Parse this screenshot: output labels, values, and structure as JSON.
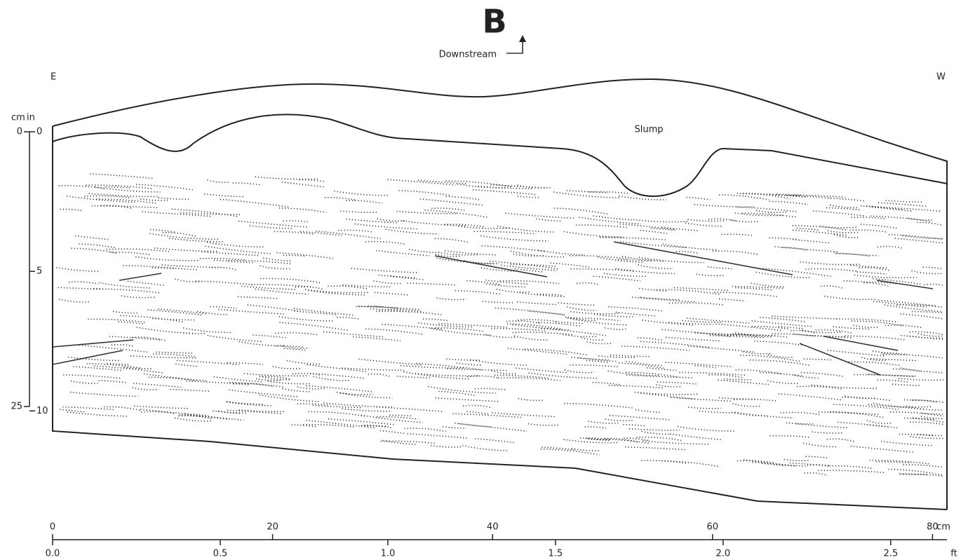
{
  "header": {
    "title": "B",
    "direction": "Downstream"
  },
  "orientation": {
    "left": "E",
    "right": "W"
  },
  "labels": {
    "slump": "Slump"
  },
  "vertical_scale": {
    "cm_unit": "cm",
    "in_unit": "in",
    "cm_ticks": [
      0,
      25
    ],
    "in_ticks": [
      0,
      5,
      10
    ]
  },
  "horizontal_scale": {
    "cm_unit": "cm",
    "ft_unit": "ft",
    "cm_ticks": [
      0,
      20,
      40,
      60,
      80
    ],
    "ft_ticks": [
      {
        "value": 0,
        "label": "0.0"
      },
      0.5,
      {
        "value": 1,
        "label": "1.0"
      },
      1.5,
      {
        "value": 2,
        "label": "2.0"
      },
      2.5
    ]
  }
}
